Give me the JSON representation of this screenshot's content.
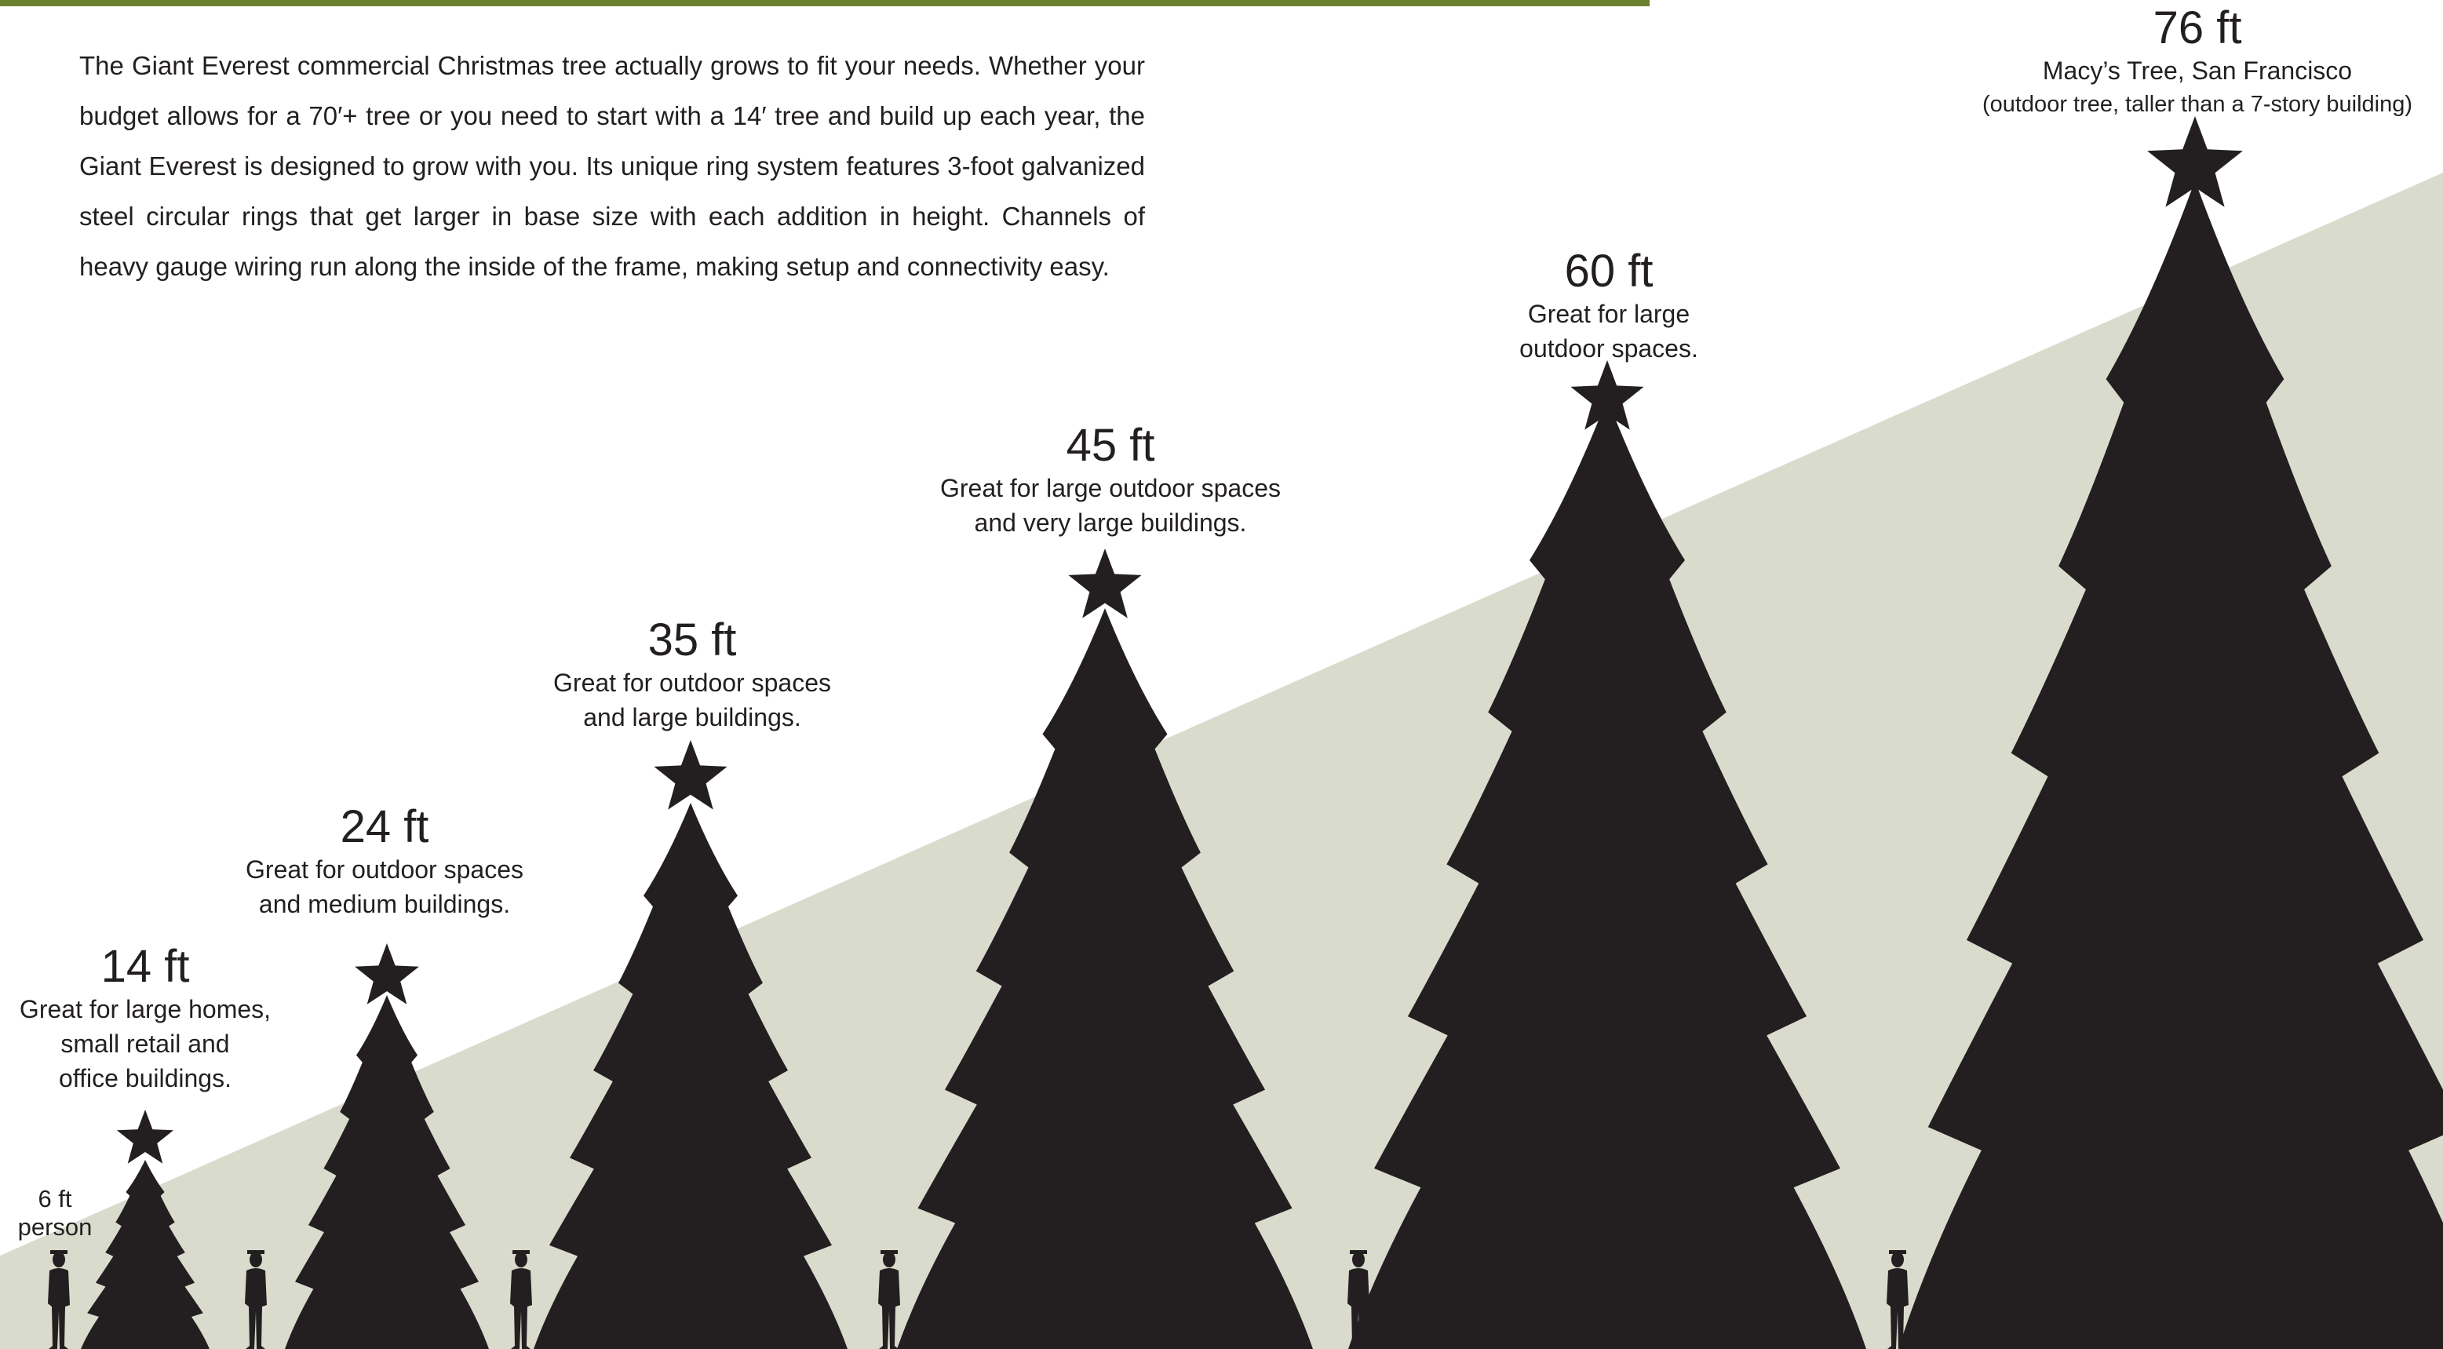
{
  "colors": {
    "accent_bar": "#6a8130",
    "background_wedge": "#d9dccd",
    "silhouette": "#231f20",
    "text": "#231f20"
  },
  "intro_text": "The Giant Everest commercial Christmas tree actually grows to fit your needs. Whether your budget allows for a 70′+ tree or you need to start with a 14′ tree and build up each year, the Giant Everest is designed to grow with you. Its unique ring system features 3-foot galvanized steel circular rings that get larger in base size with each addition in height. Channels of heavy gauge wiring run along the inside of the frame, making setup and connectivity easy.",
  "person": {
    "line1": "6 ft",
    "line2": "person",
    "height_ft": 6,
    "icon": "person-silhouette-icon"
  },
  "trees": [
    {
      "height": "14 ft",
      "height_ft": 14,
      "desc": [
        "Great for large homes,",
        "small retail and",
        "office buildings."
      ],
      "icon": "christmas-tree-silhouette-icon"
    },
    {
      "height": "24 ft",
      "height_ft": 24,
      "desc": [
        "Great for outdoor spaces",
        "and medium buildings."
      ],
      "icon": "christmas-tree-silhouette-icon"
    },
    {
      "height": "35 ft",
      "height_ft": 35,
      "desc": [
        "Great for outdoor spaces",
        "and large buildings."
      ],
      "icon": "christmas-tree-silhouette-icon"
    },
    {
      "height": "45 ft",
      "height_ft": 45,
      "desc": [
        "Great for large outdoor spaces",
        "and very large buildings."
      ],
      "icon": "christmas-tree-silhouette-icon"
    },
    {
      "height": "60 ft",
      "height_ft": 60,
      "desc": [
        "Great for large",
        "outdoor spaces."
      ],
      "icon": "christmas-tree-silhouette-icon"
    },
    {
      "height": "76 ft",
      "height_ft": 76,
      "desc": [
        "Macy’s Tree, San Francisco",
        "(outdoor tree, taller than a 7-story building)"
      ],
      "icon": "christmas-tree-silhouette-icon"
    }
  ]
}
